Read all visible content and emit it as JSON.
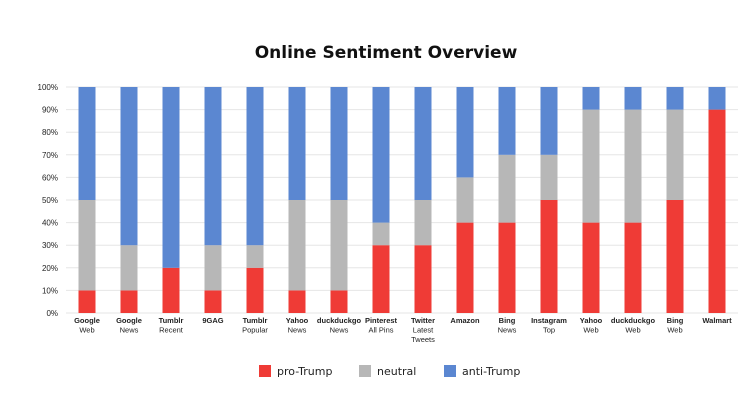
{
  "chart_data": {
    "type": "bar",
    "stacked": true,
    "title": "Online Sentiment Overview",
    "xlabel": "",
    "ylabel": "",
    "ylim": [
      0,
      100
    ],
    "y_ticks": [
      "0%",
      "10%",
      "20%",
      "30%",
      "40%",
      "50%",
      "60%",
      "70%",
      "80%",
      "90%",
      "100%"
    ],
    "grid": true,
    "legend_position": "bottom",
    "categories": [
      [
        "Google",
        "Web"
      ],
      [
        "Google",
        "News"
      ],
      [
        "Tumblr",
        "Recent"
      ],
      [
        "9GAG"
      ],
      [
        "Tumblr",
        "Popular"
      ],
      [
        "Yahoo",
        "News"
      ],
      [
        "duckduckgo",
        "News"
      ],
      [
        "Pinterest",
        "All Pins"
      ],
      [
        "Twitter",
        "Latest",
        "Tweets"
      ],
      [
        "Amazon"
      ],
      [
        "Bing",
        "News"
      ],
      [
        "Instagram",
        "Top"
      ],
      [
        "Yahoo",
        "Web"
      ],
      [
        "duckduckgo",
        "Web"
      ],
      [
        "Bing",
        "Web"
      ],
      [
        "Walmart"
      ]
    ],
    "series": [
      {
        "name": "pro-Trump",
        "color": "#ef3b36",
        "values": [
          10,
          10,
          20,
          10,
          20,
          10,
          10,
          30,
          30,
          40,
          40,
          50,
          40,
          40,
          50,
          90
        ]
      },
      {
        "name": "neutral",
        "color": "#b7b7b7",
        "values": [
          40,
          20,
          0,
          20,
          10,
          40,
          40,
          10,
          20,
          20,
          30,
          20,
          50,
          50,
          40,
          0
        ]
      },
      {
        "name": "anti-Trump",
        "color": "#5b87d1",
        "values": [
          50,
          70,
          80,
          70,
          70,
          50,
          50,
          60,
          50,
          40,
          30,
          30,
          10,
          10,
          10,
          10
        ]
      }
    ]
  }
}
